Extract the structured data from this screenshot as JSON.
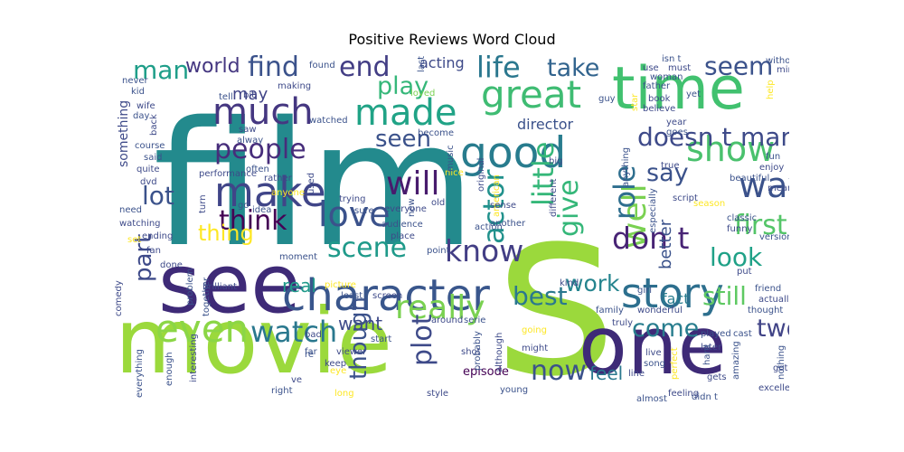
{
  "chart_data": {
    "type": "wordcloud",
    "title": "Positive Reviews Word Cloud",
    "palette": "viridis",
    "words": [
      {
        "text": "film",
        "color": "#238a8d"
      },
      {
        "text": "s",
        "color": "#9bd93c"
      },
      {
        "text": "movie",
        "color": "#9bd93c"
      },
      {
        "text": "see",
        "color": "#3e2a77"
      },
      {
        "text": "one",
        "color": "#3e2a77"
      },
      {
        "text": "time",
        "color": "#41c16f"
      },
      {
        "text": "character",
        "color": "#39568c"
      },
      {
        "text": "story",
        "color": "#2d6f8e"
      },
      {
        "text": "good",
        "color": "#287c8e"
      },
      {
        "text": "make",
        "color": "#404588"
      },
      {
        "text": "great",
        "color": "#3fbc73"
      },
      {
        "text": "much",
        "color": "#453781"
      },
      {
        "text": "made",
        "color": "#20a386"
      },
      {
        "text": "life",
        "color": "#2a778e"
      },
      {
        "text": "show",
        "color": "#4ac16d"
      },
      {
        "text": "way",
        "color": "#3b528b"
      },
      {
        "text": "love",
        "color": "#3b528b"
      },
      {
        "text": "people",
        "color": "#472d7b"
      },
      {
        "text": "even",
        "color": "#8bd646"
      },
      {
        "text": "watch",
        "color": "#2a788e"
      },
      {
        "text": "really",
        "color": "#7ad151"
      },
      {
        "text": "well",
        "color": "#7ad151"
      },
      {
        "text": "know",
        "color": "#433e85"
      },
      {
        "text": "don t",
        "color": "#482475"
      },
      {
        "text": "think",
        "color": "#440154"
      },
      {
        "text": "will",
        "color": "#481b6d"
      },
      {
        "text": "plot",
        "color": "#3e4a89"
      },
      {
        "text": "play",
        "color": "#35b779"
      },
      {
        "text": "seen",
        "color": "#3b528b"
      },
      {
        "text": "scene",
        "color": "#1f9a8a"
      },
      {
        "text": "first",
        "color": "#54c568"
      },
      {
        "text": "still",
        "color": "#5ec962"
      },
      {
        "text": "look",
        "color": "#1fa187"
      },
      {
        "text": "end",
        "color": "#433e85"
      },
      {
        "text": "find",
        "color": "#3b528b"
      },
      {
        "text": "man",
        "color": "#1f9e89"
      },
      {
        "text": "world",
        "color": "#453781"
      },
      {
        "text": "take",
        "color": "#32648e"
      },
      {
        "text": "seem",
        "color": "#3b528b"
      },
      {
        "text": "actor",
        "color": "#21918c"
      },
      {
        "text": "little",
        "color": "#35b779"
      },
      {
        "text": "give",
        "color": "#35b779"
      },
      {
        "text": "role",
        "color": "#2e6e8e"
      },
      {
        "text": "say",
        "color": "#3b528b"
      },
      {
        "text": "doesn t",
        "color": "#3e4a89"
      },
      {
        "text": "many",
        "color": "#3e4a89"
      },
      {
        "text": "lot",
        "color": "#3b528b"
      },
      {
        "text": "thing",
        "color": "#fde725"
      },
      {
        "text": "part",
        "color": "#3e4a89"
      },
      {
        "text": "best",
        "color": "#2a788e"
      },
      {
        "text": "now",
        "color": "#3b528b"
      },
      {
        "text": "work",
        "color": "#25848e"
      },
      {
        "text": "come",
        "color": "#287d8e"
      },
      {
        "text": "two",
        "color": "#414487"
      },
      {
        "text": "though",
        "color": "#3b528b"
      },
      {
        "text": "feel",
        "color": "#2a788e"
      },
      {
        "text": "acting",
        "color": "#3e4a89"
      },
      {
        "text": "director",
        "color": "#3b528b"
      },
      {
        "text": "may",
        "color": "#414487"
      },
      {
        "text": "real",
        "color": "#1f9a8a"
      },
      {
        "text": "want",
        "color": "#3e4a89"
      },
      {
        "text": "something",
        "color": "#3e4a89"
      },
      {
        "text": "better",
        "color": "#3b528b"
      },
      {
        "text": "fact",
        "color": "#287c8e"
      },
      {
        "text": "episode",
        "color": "#440154"
      },
      {
        "text": "never",
        "color": "#3b528b"
      },
      {
        "text": "kid",
        "color": "#3b528b"
      },
      {
        "text": "wife",
        "color": "#3e4a89"
      },
      {
        "text": "day",
        "color": "#3b528b"
      },
      {
        "text": "back",
        "color": "#3e4a89"
      },
      {
        "text": "course",
        "color": "#3b528b"
      },
      {
        "text": "said",
        "color": "#3b528b"
      },
      {
        "text": "quite",
        "color": "#3e4a89"
      },
      {
        "text": "dvd",
        "color": "#3e4a89"
      },
      {
        "text": "need",
        "color": "#3b528b"
      },
      {
        "text": "watching",
        "color": "#3e4a89"
      },
      {
        "text": "ending",
        "color": "#3e4a89"
      },
      {
        "text": "fan",
        "color": "#3e4a89"
      },
      {
        "text": "done",
        "color": "#3e4a89"
      },
      {
        "text": "problem",
        "color": "#3b528b"
      },
      {
        "text": "comedy",
        "color": "#3e4a89"
      },
      {
        "text": "found",
        "color": "#3b528b"
      },
      {
        "text": "making",
        "color": "#3e4a89"
      },
      {
        "text": "tell",
        "color": "#3b528b"
      },
      {
        "text": "bit",
        "color": "#3e4a89"
      },
      {
        "text": "watched",
        "color": "#3b528b"
      },
      {
        "text": "saw",
        "color": "#3e4a89"
      },
      {
        "text": "alway",
        "color": "#3b528b"
      },
      {
        "text": "performance",
        "color": "#3e4a89"
      },
      {
        "text": "often",
        "color": "#3b528b"
      },
      {
        "text": "rather",
        "color": "#3e4a89"
      },
      {
        "text": "anyone",
        "color": "#fde725"
      },
      {
        "text": "become",
        "color": "#3b528b"
      },
      {
        "text": "nice",
        "color": "#fde725"
      },
      {
        "text": "loved",
        "color": "#7ad151"
      },
      {
        "text": "old",
        "color": "#3e4a89"
      },
      {
        "text": "new",
        "color": "#3b528b"
      },
      {
        "text": "trying",
        "color": "#3e4a89"
      },
      {
        "text": "sure",
        "color": "#3b528b"
      },
      {
        "text": "everyone",
        "color": "#3e4a89"
      },
      {
        "text": "audience",
        "color": "#3b528b"
      },
      {
        "text": "place",
        "color": "#3e4a89"
      },
      {
        "text": "idea",
        "color": "#3b528b"
      },
      {
        "text": "moment",
        "color": "#3b528b"
      },
      {
        "text": "brilliant",
        "color": "#3e4a89"
      },
      {
        "text": "point",
        "color": "#3b528b"
      },
      {
        "text": "original",
        "color": "#3e4a89"
      },
      {
        "text": "music",
        "color": "#3b528b"
      },
      {
        "text": "american",
        "color": "#fde725"
      },
      {
        "text": "action",
        "color": "#3b528b"
      },
      {
        "text": "sense",
        "color": "#3e4a89"
      },
      {
        "text": "another",
        "color": "#3b528b"
      },
      {
        "text": "big",
        "color": "#3e4a89"
      },
      {
        "text": "anything",
        "color": "#3b528b"
      },
      {
        "text": "different",
        "color": "#3e4a89"
      },
      {
        "text": "guy",
        "color": "#3b528b"
      },
      {
        "text": "use",
        "color": "#3e4a89"
      },
      {
        "text": "isn t",
        "color": "#3b528b"
      },
      {
        "text": "must",
        "color": "#3e4a89"
      },
      {
        "text": "father",
        "color": "#3b528b"
      },
      {
        "text": "book",
        "color": "#3e4a89"
      },
      {
        "text": "yet",
        "color": "#3b528b"
      },
      {
        "text": "believe",
        "color": "#3e4a89"
      },
      {
        "text": "woman",
        "color": "#3b528b"
      },
      {
        "text": "year",
        "color": "#3e4a89"
      },
      {
        "text": "goes",
        "color": "#3b528b"
      },
      {
        "text": "true",
        "color": "#3e4a89"
      },
      {
        "text": "without",
        "color": "#3b528b"
      },
      {
        "text": "mind",
        "color": "#3e4a89"
      },
      {
        "text": "help",
        "color": "#fde725"
      },
      {
        "text": "fun",
        "color": "#3b528b"
      },
      {
        "text": "enjoy",
        "color": "#3e4a89"
      },
      {
        "text": "beautiful",
        "color": "#3b528b"
      },
      {
        "text": "mean",
        "color": "#3e4a89"
      },
      {
        "text": "classic",
        "color": "#3b528b"
      },
      {
        "text": "funny",
        "color": "#3e4a89"
      },
      {
        "text": "version",
        "color": "#3b528b"
      },
      {
        "text": "script",
        "color": "#3e4a89"
      },
      {
        "text": "especially",
        "color": "#3b528b"
      },
      {
        "text": "season",
        "color": "#fde725"
      },
      {
        "text": "put",
        "color": "#3e4a89"
      },
      {
        "text": "friend",
        "color": "#3b528b"
      },
      {
        "text": "actually",
        "color": "#3e4a89"
      },
      {
        "text": "thought",
        "color": "#3b528b"
      },
      {
        "text": "kind",
        "color": "#3e4a89"
      },
      {
        "text": "girl",
        "color": "#3b528b"
      },
      {
        "text": "wonderful",
        "color": "#3e4a89"
      },
      {
        "text": "family",
        "color": "#3b528b"
      },
      {
        "text": "truly",
        "color": "#3e4a89"
      },
      {
        "text": "played",
        "color": "#3b528b"
      },
      {
        "text": "later",
        "color": "#3e4a89"
      },
      {
        "text": "cast",
        "color": "#3b528b"
      },
      {
        "text": "live",
        "color": "#3e4a89"
      },
      {
        "text": "song",
        "color": "#3b528b"
      },
      {
        "text": "perfect",
        "color": "#fde725"
      },
      {
        "text": "line",
        "color": "#3e4a89"
      },
      {
        "text": "hard",
        "color": "#3b528b"
      },
      {
        "text": "gets",
        "color": "#3e4a89"
      },
      {
        "text": "amazing",
        "color": "#3b528b"
      },
      {
        "text": "got",
        "color": "#3e4a89"
      },
      {
        "text": "nothing",
        "color": "#3b528b"
      },
      {
        "text": "excellent",
        "color": "#3e4a89"
      },
      {
        "text": "didn t",
        "color": "#3b528b"
      },
      {
        "text": "feeling",
        "color": "#3e4a89"
      },
      {
        "text": "almost",
        "color": "#3b528b"
      },
      {
        "text": "going",
        "color": "#fde725"
      },
      {
        "text": "might",
        "color": "#3e4a89"
      },
      {
        "text": "serie",
        "color": "#3b528b"
      },
      {
        "text": "around",
        "color": "#3e4a89"
      },
      {
        "text": "start",
        "color": "#3b528b"
      },
      {
        "text": "shot",
        "color": "#3e4a89"
      },
      {
        "text": "probably",
        "color": "#3b528b"
      },
      {
        "text": "although",
        "color": "#3e4a89"
      },
      {
        "text": "young",
        "color": "#3b528b"
      },
      {
        "text": "style",
        "color": "#3e4a89"
      },
      {
        "text": "long",
        "color": "#fde725"
      },
      {
        "text": "least",
        "color": "#3b528b"
      },
      {
        "text": "screen",
        "color": "#3e4a89"
      },
      {
        "text": "picture",
        "color": "#fde725"
      },
      {
        "text": "together",
        "color": "#3b528b"
      },
      {
        "text": "turn",
        "color": "#3e4a89"
      },
      {
        "text": "go",
        "color": "#3b528b"
      },
      {
        "text": "set",
        "color": "#fde725"
      },
      {
        "text": "bad",
        "color": "#3e4a89"
      },
      {
        "text": "far",
        "color": "#3b528b"
      },
      {
        "text": "keep",
        "color": "#3e4a89"
      },
      {
        "text": "re",
        "color": "#3b528b"
      },
      {
        "text": "ve",
        "color": "#3e4a89"
      },
      {
        "text": "right",
        "color": "#3b528b"
      },
      {
        "text": "viewer",
        "color": "#3e4a89"
      },
      {
        "text": "enough",
        "color": "#3b528b"
      },
      {
        "text": "interesting",
        "color": "#3e4a89"
      },
      {
        "text": "everything",
        "color": "#3b528b"
      },
      {
        "text": "eye",
        "color": "#fde725"
      },
      {
        "text": "used",
        "color": "#3e4a89"
      },
      {
        "text": "star",
        "color": "#fde725"
      },
      {
        "text": "last",
        "color": "#3b528b"
      }
    ]
  }
}
